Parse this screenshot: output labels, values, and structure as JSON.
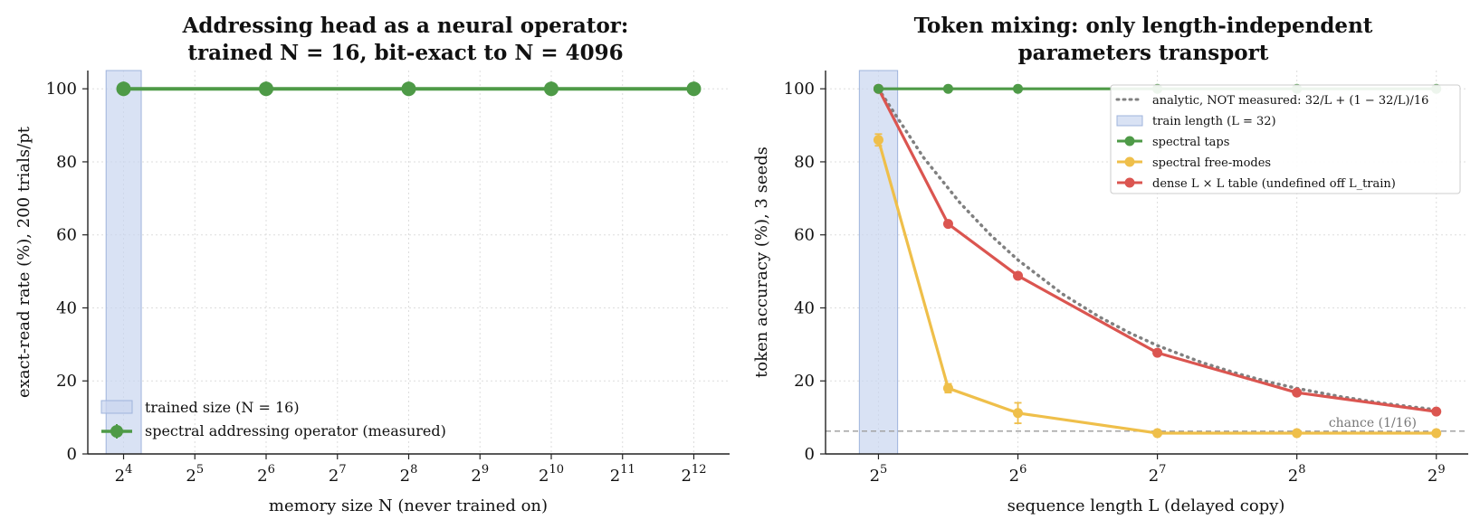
{
  "colors": {
    "green": "#4e9a47",
    "yellow": "#efbf4a",
    "red": "#db5550",
    "analytic": "#808080",
    "shade_fill": "#c9d6ef",
    "shade_edge": "#9fb4dc",
    "grid": "#dddddd",
    "chance": "#a3a3a3"
  },
  "chart_data": [
    {
      "type": "line",
      "title_line1": "Addressing head as a neural operator:",
      "title_line2": "trained N = 16, bit-exact to N = 4096",
      "xlabel": "memory size N (never trained on)",
      "ylabel": "exact-read rate (%), 200 trials/pt",
      "x_scale": "log2",
      "xlim": [
        11.3,
        5800
      ],
      "ylim": [
        0,
        105
      ],
      "x_ticks": [
        16,
        32,
        64,
        128,
        256,
        512,
        1024,
        2048,
        4096
      ],
      "x_tick_labels": [
        {
          "base": "2",
          "exp": "4"
        },
        {
          "base": "2",
          "exp": "5"
        },
        {
          "base": "2",
          "exp": "6"
        },
        {
          "base": "2",
          "exp": "7"
        },
        {
          "base": "2",
          "exp": "8"
        },
        {
          "base": "2",
          "exp": "9"
        },
        {
          "base": "2",
          "exp": "10"
        },
        {
          "base": "2",
          "exp": "11"
        },
        {
          "base": "2",
          "exp": "12"
        }
      ],
      "y_ticks": [
        0,
        20,
        40,
        60,
        80,
        100
      ],
      "y_tick_labels": [
        "0",
        "20",
        "40",
        "60",
        "80",
        "100"
      ],
      "grid": true,
      "shaded_region": {
        "x0": 13.5,
        "x1": 19.0,
        "label": "trained size (N = 16)"
      },
      "series": [
        {
          "name": "spectral addressing operator (measured)",
          "color_key": "green",
          "x": [
            16,
            64,
            256,
            1024,
            4096
          ],
          "y": [
            100,
            100,
            100,
            100,
            100
          ]
        }
      ],
      "legend_position": "lower-left"
    },
    {
      "type": "line",
      "title_line1": "Token mixing: only length-independent",
      "title_line2": "parameters transport",
      "xlabel": "sequence length L (delayed copy)",
      "ylabel": "token accuracy (%), 3 seeds",
      "x_scale": "log2",
      "xlim": [
        24.6,
        600
      ],
      "ylim": [
        0,
        105
      ],
      "x_ticks": [
        32,
        64,
        128,
        256,
        512
      ],
      "x_tick_labels": [
        {
          "base": "2",
          "exp": "5"
        },
        {
          "base": "2",
          "exp": "6"
        },
        {
          "base": "2",
          "exp": "7"
        },
        {
          "base": "2",
          "exp": "8"
        },
        {
          "base": "2",
          "exp": "9"
        }
      ],
      "y_ticks": [
        0,
        20,
        40,
        60,
        80,
        100
      ],
      "y_tick_labels": [
        "0",
        "20",
        "40",
        "60",
        "80",
        "100"
      ],
      "grid": true,
      "shaded_region": {
        "x0": 29.1,
        "x1": 35.2,
        "label": "train length (L = 32)"
      },
      "chance_line": {
        "y": 6.25,
        "label": "chance (1/16)"
      },
      "analytic": {
        "name": "analytic, NOT measured: 32/L + (1 − 32/L)/16",
        "x": [
          32,
          40,
          48,
          56,
          64,
          80,
          96,
          112,
          128,
          160,
          192,
          224,
          256,
          320,
          384,
          448,
          512
        ],
        "y": [
          100,
          81.25,
          68.75,
          59.82,
          53.13,
          43.75,
          37.5,
          33.04,
          29.69,
          25.0,
          21.88,
          19.64,
          17.97,
          15.63,
          14.06,
          12.95,
          12.11
        ]
      },
      "series": [
        {
          "name": "spectral taps",
          "color_key": "green",
          "x": [
            32,
            45.25,
            64,
            128,
            256,
            512
          ],
          "y": [
            100,
            100,
            100,
            100,
            100,
            100
          ],
          "err": [
            0,
            0,
            0,
            0,
            0,
            0
          ]
        },
        {
          "name": "spectral free-modes",
          "color_key": "yellow",
          "x": [
            32,
            45.25,
            64,
            128,
            256,
            512
          ],
          "y": [
            86.0,
            18.0,
            11.2,
            5.7,
            5.7,
            5.7
          ],
          "err": [
            1.6,
            1.2,
            2.8,
            0.4,
            0.3,
            0.3
          ]
        },
        {
          "name": "dense L × L table (undefined off L_train)",
          "color_key": "red",
          "x": [
            32,
            45.25,
            64,
            128,
            256,
            512
          ],
          "y": [
            100,
            63.0,
            48.8,
            27.7,
            16.8,
            11.6
          ],
          "err": [
            0,
            0.6,
            0.6,
            0.4,
            0.4,
            0.4
          ]
        }
      ],
      "legend_position": "upper-right"
    }
  ]
}
